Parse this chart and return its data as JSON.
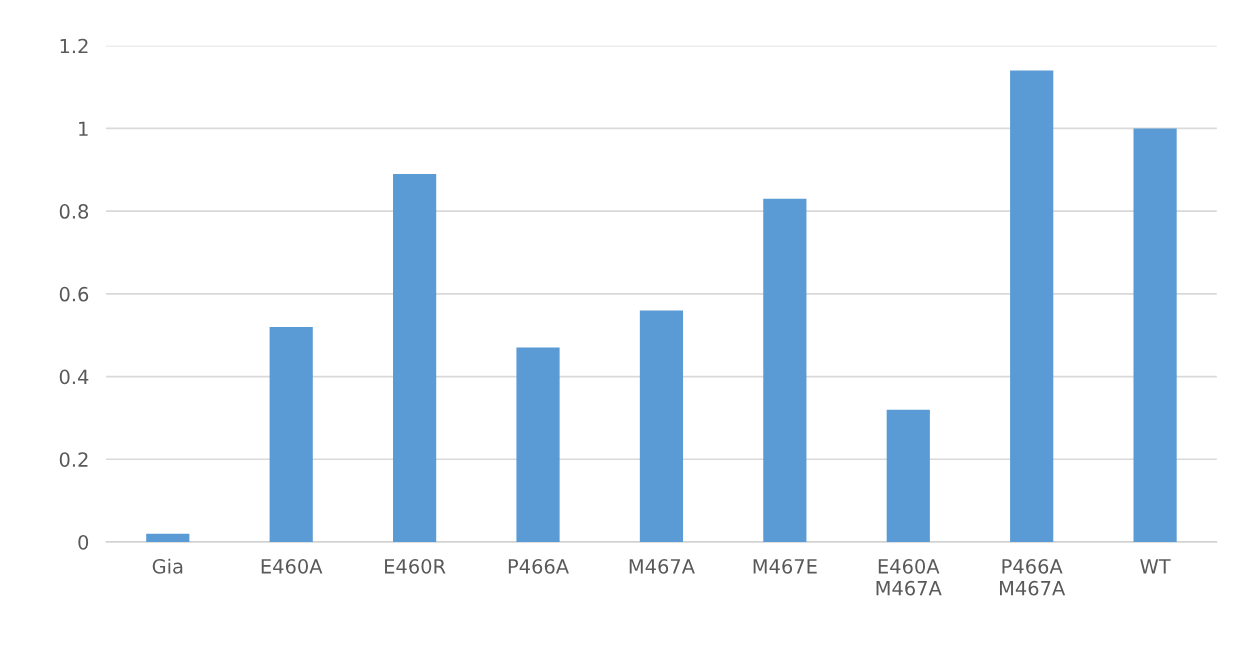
{
  "chart_data": {
    "type": "bar",
    "categories": [
      "Gia",
      "E460A",
      "E460R",
      "P466A",
      "M467A",
      "M467E",
      "E460A\nM467A",
      "P466A\nM467A",
      "WT"
    ],
    "values": [
      0.02,
      0.52,
      0.89,
      0.47,
      0.56,
      0.83,
      0.32,
      1.14,
      1.0
    ],
    "color": "#5b9bd5",
    "ylim": [
      0,
      1.2
    ],
    "yticks": [
      {
        "value": 0,
        "label": "0"
      },
      {
        "value": 0.2,
        "label": "0.2"
      },
      {
        "value": 0.4,
        "label": "0.4"
      },
      {
        "value": 0.6,
        "label": "0.6"
      },
      {
        "value": 0.8,
        "label": "0.8"
      },
      {
        "value": 1,
        "label": "1"
      },
      {
        "value": 1.2,
        "label": "1.2"
      }
    ],
    "grid": "y"
  }
}
